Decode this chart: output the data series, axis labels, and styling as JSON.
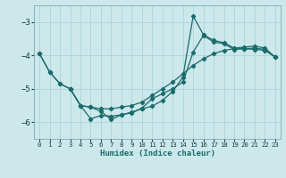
{
  "xlabel": "Humidex (Indice chaleur)",
  "bg_color": "#cce8eb",
  "grid_color": "#b0d8dc",
  "line_color": "#1a6b6b",
  "xlim": [
    -0.5,
    23.5
  ],
  "ylim": [
    -6.5,
    -2.5
  ],
  "yticks": [
    -6,
    -5,
    -4,
    -3
  ],
  "xticks": [
    0,
    1,
    2,
    3,
    4,
    5,
    6,
    7,
    8,
    9,
    10,
    11,
    12,
    13,
    14,
    15,
    16,
    17,
    18,
    19,
    20,
    21,
    22,
    23
  ],
  "line1_x": [
    0,
    1,
    2,
    3,
    4,
    5,
    6,
    7,
    8,
    9,
    10,
    11,
    12,
    13,
    14,
    15,
    16,
    17,
    18,
    19,
    20,
    21,
    22,
    23
  ],
  "line1_y": [
    -3.95,
    -4.5,
    -4.85,
    -5.0,
    -5.5,
    -5.55,
    -5.6,
    -5.6,
    -5.55,
    -5.5,
    -5.4,
    -5.2,
    -5.0,
    -4.8,
    -4.55,
    -4.3,
    -4.1,
    -3.95,
    -3.85,
    -3.8,
    -3.8,
    -3.82,
    -3.85,
    -4.05
  ],
  "line2_x": [
    0,
    1,
    2,
    3,
    4,
    5,
    6,
    7,
    8,
    9,
    10,
    11,
    12,
    13,
    14,
    15,
    16,
    17,
    18,
    19,
    20,
    21,
    22,
    23
  ],
  "line2_y": [
    -3.95,
    -4.5,
    -4.85,
    -5.0,
    -5.5,
    -5.9,
    -5.8,
    -5.82,
    -5.78,
    -5.72,
    -5.58,
    -5.3,
    -5.15,
    -5.0,
    -4.8,
    -3.9,
    -3.4,
    -3.6,
    -3.65,
    -3.82,
    -3.8,
    -3.78,
    -3.82,
    -4.05
  ],
  "line3_x": [
    3,
    4,
    5,
    6,
    7,
    8,
    9,
    10,
    11,
    12,
    13,
    14,
    15,
    16,
    17,
    18,
    19,
    20,
    21,
    22,
    23
  ],
  "line3_y": [
    -5.0,
    -5.5,
    -5.55,
    -5.68,
    -5.92,
    -5.78,
    -5.7,
    -5.6,
    -5.52,
    -5.35,
    -5.08,
    -4.65,
    -2.82,
    -3.38,
    -3.55,
    -3.62,
    -3.78,
    -3.75,
    -3.72,
    -3.78,
    -4.05
  ]
}
